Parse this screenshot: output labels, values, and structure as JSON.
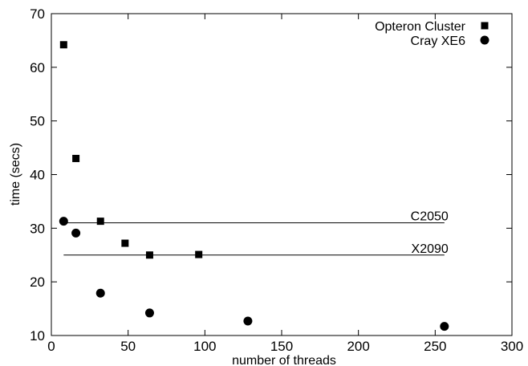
{
  "chart_data": {
    "type": "scatter",
    "title": "",
    "xlabel": "number of threads",
    "ylabel": "time (secs)",
    "xlim": [
      0,
      300
    ],
    "ylim": [
      10,
      70
    ],
    "xticks": [
      "0",
      "50",
      "100",
      "150",
      "200",
      "250",
      "300"
    ],
    "yticks": [
      "10",
      "20",
      "30",
      "40",
      "50",
      "60",
      "70"
    ],
    "grid": false,
    "legend_position": "top-right",
    "series": [
      {
        "name": "Opteron Cluster",
        "marker": "square",
        "points": [
          [
            8,
            64.2
          ],
          [
            16,
            43.0
          ],
          [
            32,
            31.3
          ],
          [
            48,
            27.2
          ],
          [
            64,
            25.0
          ],
          [
            96,
            25.1
          ]
        ]
      },
      {
        "name": "Cray XE6",
        "marker": "circle",
        "points": [
          [
            8,
            31.3
          ],
          [
            16,
            29.1
          ],
          [
            32,
            17.9
          ],
          [
            64,
            14.2
          ],
          [
            128,
            12.7
          ],
          [
            256,
            11.7
          ]
        ]
      }
    ],
    "reference_lines": [
      {
        "label": "C2050",
        "y": 31.0,
        "x_start": 8,
        "x_end": 256
      },
      {
        "label": "X2090",
        "y": 25.0,
        "x_start": 8,
        "x_end": 256
      }
    ]
  }
}
